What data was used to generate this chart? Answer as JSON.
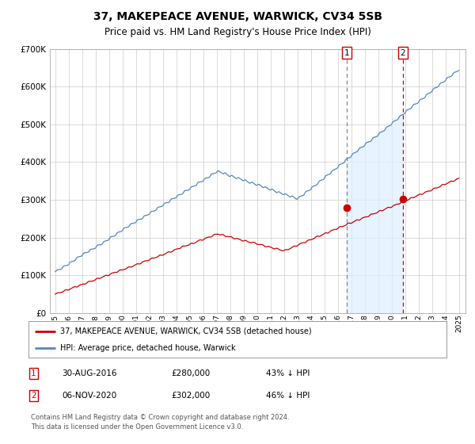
{
  "title": "37, MAKEPEACE AVENUE, WARWICK, CV34 5SB",
  "subtitle": "Price paid vs. HM Land Registry's House Price Index (HPI)",
  "title_fontsize": 10,
  "subtitle_fontsize": 8.5,
  "ylim": [
    0,
    700000
  ],
  "yticks": [
    0,
    100000,
    200000,
    300000,
    400000,
    500000,
    600000,
    700000
  ],
  "ytick_labels": [
    "£0",
    "£100K",
    "£200K",
    "£300K",
    "£400K",
    "£500K",
    "£600K",
    "£700K"
  ],
  "hpi_color": "#5588bb",
  "hpi_fill_color": "#ddeeff",
  "price_color": "#cc0000",
  "vline1_color": "#888888",
  "vline2_color": "#cc0000",
  "sale1_date_num": 2016.66,
  "sale1_price": 280000,
  "sale1_date_str": "30-AUG-2016",
  "sale1_pct": "43% ↓ HPI",
  "sale2_date_num": 2020.84,
  "sale2_price": 302000,
  "sale2_date_str": "06-NOV-2020",
  "sale2_pct": "46% ↓ HPI",
  "legend_label1": "37, MAKEPEACE AVENUE, WARWICK, CV34 5SB (detached house)",
  "legend_label2": "HPI: Average price, detached house, Warwick",
  "footer": "Contains HM Land Registry data © Crown copyright and database right 2024.\nThis data is licensed under the Open Government Licence v3.0.",
  "background_color": "#ffffff",
  "grid_color": "#cccccc",
  "xstart": 1995,
  "xend": 2025
}
